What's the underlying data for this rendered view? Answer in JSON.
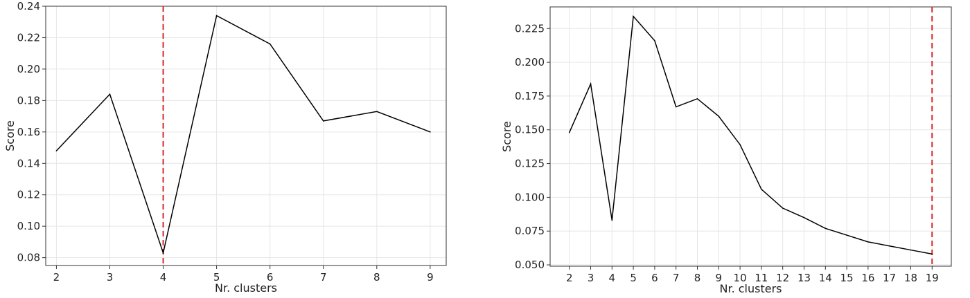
{
  "chart_data": [
    {
      "type": "line",
      "xlabel": "Nr. clusters",
      "ylabel": "Score",
      "x": [
        2,
        3,
        4,
        5,
        6,
        7,
        8,
        9
      ],
      "series": [
        {
          "values": [
            0.148,
            0.184,
            0.083,
            0.234,
            0.216,
            0.167,
            0.173,
            0.16
          ]
        }
      ],
      "xlim": [
        1.8,
        9.3
      ],
      "ylim": [
        0.075,
        0.24
      ],
      "xticks": [
        2,
        3,
        4,
        5,
        6,
        7,
        8,
        9
      ],
      "yticks": [
        0.08,
        0.1,
        0.12,
        0.14,
        0.16,
        0.18,
        0.2,
        0.22,
        0.24
      ],
      "ytick_labels": [
        "0.08",
        "0.10",
        "0.12",
        "0.14",
        "0.16",
        "0.18",
        "0.20",
        "0.22",
        "0.24"
      ],
      "vline": {
        "x": 4,
        "color": "#d62728",
        "style": "dashed"
      },
      "grid": true
    },
    {
      "type": "line",
      "xlabel": "Nr. clusters",
      "ylabel": "Score",
      "x": [
        2,
        3,
        4,
        5,
        6,
        7,
        8,
        9,
        10,
        11,
        12,
        13,
        14,
        15,
        16,
        17,
        18,
        19
      ],
      "series": [
        {
          "values": [
            0.148,
            0.184,
            0.083,
            0.234,
            0.216,
            0.167,
            0.173,
            0.16,
            0.139,
            0.106,
            0.092,
            0.085,
            0.077,
            0.072,
            0.067,
            0.064,
            0.061,
            0.058
          ]
        }
      ],
      "xlim": [
        1.1,
        19.9
      ],
      "ylim": [
        0.049,
        0.241
      ],
      "xticks": [
        2,
        3,
        4,
        5,
        6,
        7,
        8,
        9,
        10,
        11,
        12,
        13,
        14,
        15,
        16,
        17,
        18,
        19
      ],
      "yticks": [
        0.05,
        0.075,
        0.1,
        0.125,
        0.15,
        0.175,
        0.2,
        0.225
      ],
      "ytick_labels": [
        "0.050",
        "0.075",
        "0.100",
        "0.125",
        "0.150",
        "0.175",
        "0.200",
        "0.225"
      ],
      "vline": {
        "x": 19,
        "color": "#d62728",
        "style": "dashed"
      },
      "grid": true
    }
  ]
}
